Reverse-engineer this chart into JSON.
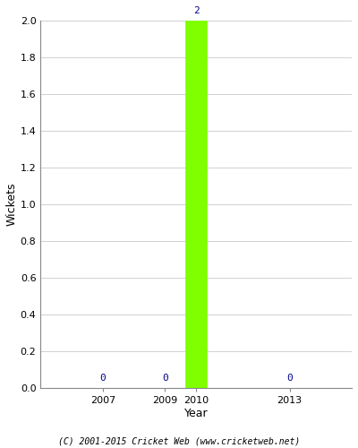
{
  "years": [
    2007,
    2009,
    2010,
    2013
  ],
  "wickets": [
    0,
    0,
    2,
    0
  ],
  "bar_color": "#7fff00",
  "bar_edge_color": "#7fff00",
  "label_color": "#00008B",
  "xlabel": "Year",
  "ylabel": "Wickets",
  "ylim": [
    0,
    2.0
  ],
  "bar_width": 0.7,
  "footer": "(C) 2001-2015 Cricket Web (www.cricketweb.net)",
  "background_color": "#ffffff",
  "grid_color": "#d0d0d0",
  "xlim": [
    2005.0,
    2015.0
  ]
}
